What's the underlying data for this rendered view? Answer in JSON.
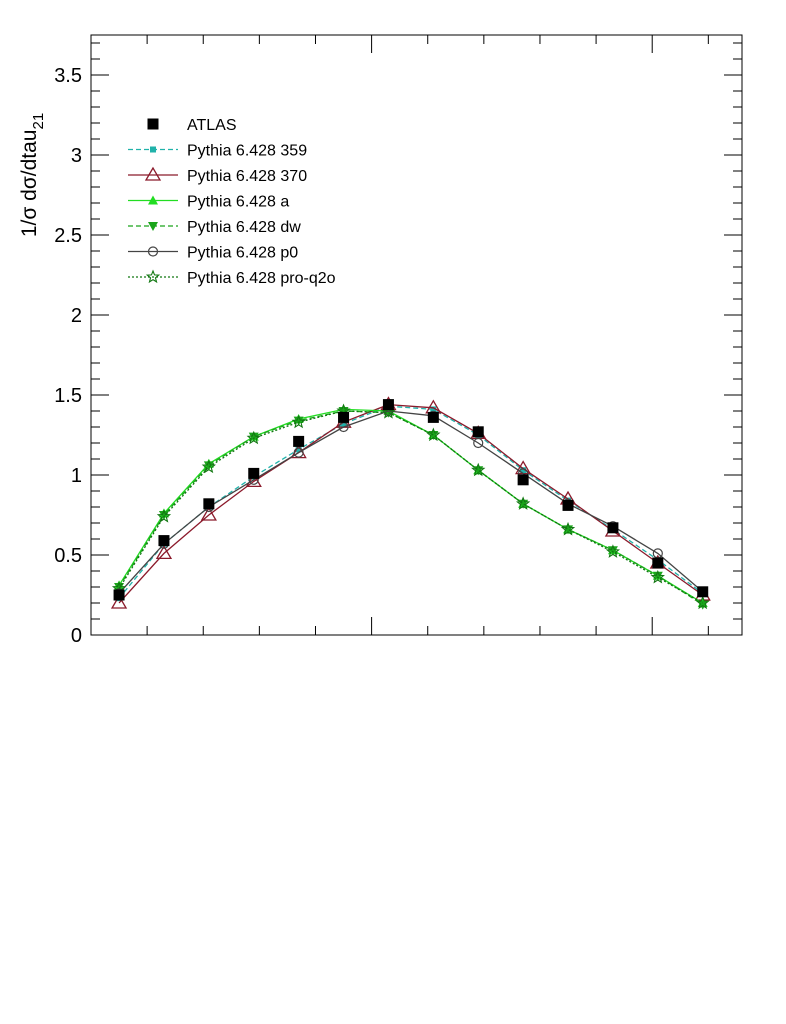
{
  "chart_data": {
    "type": "line",
    "ylabel_main": "1/σ dσ/dtau",
    "ylabel_sub": "21",
    "ylim": [
      0,
      3.75
    ],
    "yticks": [
      "0",
      "0.5",
      "1",
      "1.5",
      "2",
      "2.5",
      "3",
      "3.5"
    ],
    "legend_position": "top-left",
    "x": [
      0.05,
      0.13,
      0.21,
      0.29,
      0.37,
      0.45,
      0.53,
      0.61,
      0.69,
      0.77,
      0.85,
      0.93,
      1.01,
      1.09
    ],
    "series": [
      {
        "name": "ATLAS",
        "color": "#000000",
        "line": "none",
        "marker": "square",
        "values": [
          0.25,
          0.59,
          0.82,
          1.01,
          1.21,
          1.36,
          1.44,
          1.36,
          1.27,
          0.97,
          0.81,
          0.67,
          0.45,
          0.27
        ]
      },
      {
        "name": "Pythia 6.428 359",
        "color": "#20b2aa",
        "line": "dashed",
        "marker": "small-square",
        "values": [
          0.23,
          0.57,
          0.8,
          0.99,
          1.16,
          1.32,
          1.43,
          1.41,
          1.25,
          1.03,
          0.84,
          0.66,
          0.47,
          0.26
        ]
      },
      {
        "name": "Pythia 6.428 370",
        "color": "#8b1a2b",
        "line": "solid",
        "marker": "open-triangle",
        "values": [
          0.2,
          0.51,
          0.75,
          0.96,
          1.14,
          1.33,
          1.44,
          1.42,
          1.26,
          1.04,
          0.85,
          0.65,
          0.45,
          0.25
        ]
      },
      {
        "name": "Pythia 6.428 a",
        "color": "#22dd22",
        "line": "solid",
        "marker": "triangle-up",
        "values": [
          0.31,
          0.76,
          1.07,
          1.24,
          1.35,
          1.41,
          1.4,
          1.25,
          1.03,
          0.82,
          0.66,
          0.53,
          0.37,
          0.2
        ]
      },
      {
        "name": "Pythia 6.428 dw",
        "color": "#1aa51a",
        "line": "dashed",
        "marker": "triangle-down",
        "values": [
          0.3,
          0.75,
          1.06,
          1.24,
          1.34,
          1.4,
          1.39,
          1.25,
          1.03,
          0.82,
          0.66,
          0.53,
          0.37,
          0.19
        ]
      },
      {
        "name": "Pythia 6.428 p0",
        "color": "#444444",
        "line": "solid",
        "marker": "open-circle",
        "values": [
          0.26,
          0.57,
          0.8,
          0.97,
          1.14,
          1.3,
          1.4,
          1.37,
          1.2,
          1.01,
          0.82,
          0.68,
          0.51,
          0.27
        ]
      },
      {
        "name": "Pythia 6.428 pro-q2o",
        "color": "#117711",
        "line": "dotted",
        "marker": "star",
        "values": [
          0.29,
          0.74,
          1.05,
          1.23,
          1.33,
          1.4,
          1.39,
          1.25,
          1.03,
          0.82,
          0.66,
          0.52,
          0.36,
          0.2
        ]
      }
    ]
  }
}
